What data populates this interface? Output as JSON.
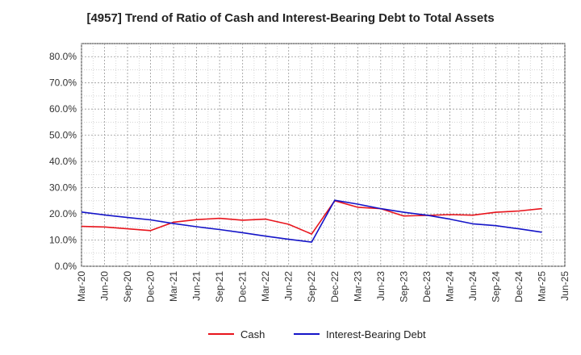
{
  "chart_data": {
    "type": "line",
    "title": "[4957]  Trend of Ratio of Cash and Interest-Bearing Debt to Total Assets",
    "xlabel": "",
    "ylabel": "",
    "ylim": [
      0,
      85
    ],
    "yticks": [
      0,
      10,
      20,
      30,
      40,
      50,
      60,
      70,
      80
    ],
    "ytick_labels": [
      "0.0%",
      "10.0%",
      "20.0%",
      "30.0%",
      "40.0%",
      "50.0%",
      "60.0%",
      "70.0%",
      "80.0%"
    ],
    "x_tick_labels": [
      "Mar-20",
      "Jun-20",
      "Sep-20",
      "Dec-20",
      "Mar-21",
      "Jun-21",
      "Sep-21",
      "Dec-21",
      "Mar-22",
      "Jun-22",
      "Sep-22",
      "Dec-22",
      "Mar-23",
      "Jun-23",
      "Sep-23",
      "Dec-23",
      "Mar-24",
      "Jun-24",
      "Sep-24",
      "Dec-24",
      "Mar-25",
      "Jun-25"
    ],
    "grid": true,
    "legend_position": "bottom",
    "series": [
      {
        "name": "Cash",
        "color": "#e8141c",
        "x": [
          "Mar-20",
          "Jun-20",
          "Sep-20",
          "Dec-20",
          "Mar-21",
          "Jun-21",
          "Sep-21",
          "Dec-21",
          "Mar-22",
          "Jun-22",
          "Sep-22",
          "Dec-22",
          "Mar-23",
          "Jun-23",
          "Sep-23",
          "Dec-23",
          "Mar-24",
          "Jun-24",
          "Sep-24",
          "Dec-24",
          "Mar-25"
        ],
        "values": [
          15.2,
          15.0,
          14.3,
          13.6,
          16.8,
          17.8,
          18.3,
          17.6,
          18.0,
          16.0,
          12.3,
          25.0,
          22.5,
          22.0,
          19.2,
          19.4,
          19.7,
          19.5,
          20.6,
          21.1,
          22.0
        ]
      },
      {
        "name": "Interest-Bearing Debt",
        "color": "#1414c8",
        "x": [
          "Mar-20",
          "Jun-20",
          "Sep-20",
          "Dec-20",
          "Mar-21",
          "Jun-21",
          "Sep-21",
          "Dec-21",
          "Mar-22",
          "Jun-22",
          "Sep-22",
          "Dec-22",
          "Mar-23",
          "Jun-23",
          "Sep-23",
          "Dec-23",
          "Mar-24",
          "Jun-24",
          "Sep-24",
          "Dec-24",
          "Mar-25"
        ],
        "values": [
          20.7,
          19.6,
          18.6,
          17.7,
          16.3,
          15.1,
          14.0,
          12.8,
          11.5,
          10.3,
          9.2,
          25.2,
          23.7,
          22.0,
          20.6,
          19.5,
          18.0,
          16.2,
          15.5,
          14.3,
          13.0
        ]
      }
    ]
  }
}
